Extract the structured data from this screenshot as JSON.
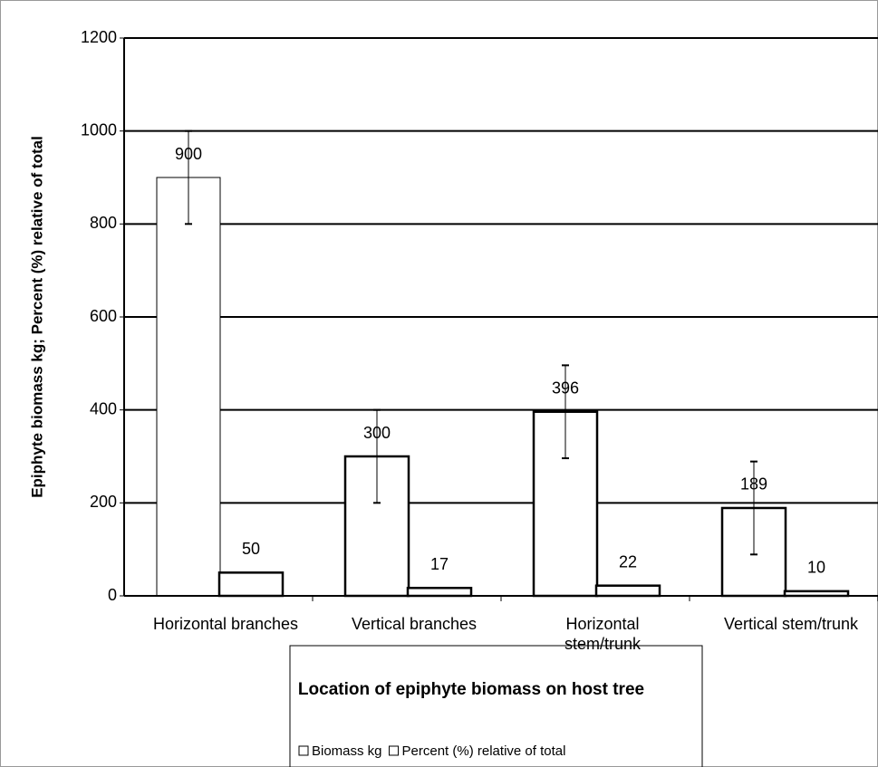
{
  "chart_data": {
    "type": "bar",
    "x_label": "Location of epiphyte biomass on host tree",
    "y_label": "Epiphyte biomass kg; Percent (%) relative of total",
    "categories": [
      "Horizontal branches",
      "Vertical branches",
      "Horizontal stem/trunk",
      "Vertical stem/trunk"
    ],
    "series": [
      {
        "name": "Biomass kg",
        "color": "#ffffff",
        "values": [
          900,
          300,
          396,
          189
        ],
        "errors": [
          100,
          100,
          100,
          100
        ]
      },
      {
        "name": "Percent (%) relative of total",
        "color": "#ffffff",
        "values": [
          50,
          17,
          22,
          10
        ]
      }
    ],
    "ylim": [
      0,
      1200
    ],
    "yticks": [
      0,
      200,
      400,
      600,
      800,
      1000,
      1200
    ],
    "grid": true
  }
}
